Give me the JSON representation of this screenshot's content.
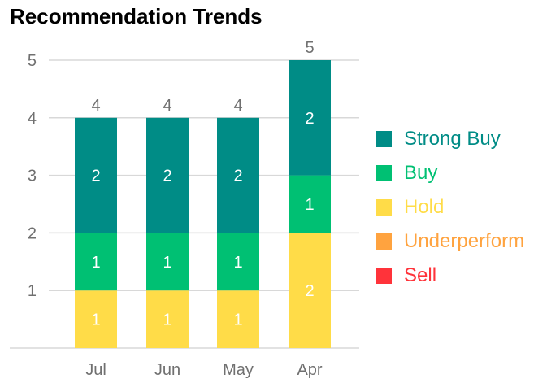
{
  "chart_data": {
    "type": "bar",
    "stacked": true,
    "title": "Recommendation Trends",
    "categories": [
      "Jul",
      "Jun",
      "May",
      "Apr"
    ],
    "series": [
      {
        "name": "Strong Buy",
        "values": [
          2,
          2,
          2,
          2
        ],
        "color": "#008c86"
      },
      {
        "name": "Buy",
        "values": [
          1,
          1,
          1,
          1
        ],
        "color": "#00c073"
      },
      {
        "name": "Hold",
        "values": [
          1,
          1,
          1,
          2
        ],
        "color": "#ffdc48"
      },
      {
        "name": "Underperform",
        "values": [
          0,
          0,
          0,
          0
        ],
        "color": "#ffa33f"
      },
      {
        "name": "Sell",
        "values": [
          0,
          0,
          0,
          0
        ],
        "color": "#ff333a"
      }
    ],
    "totals": [
      4,
      4,
      4,
      5
    ],
    "ylim": [
      0,
      5
    ],
    "yticks": [
      "1",
      "2",
      "3",
      "4",
      "5"
    ],
    "grid": true,
    "legend_position": "right"
  }
}
